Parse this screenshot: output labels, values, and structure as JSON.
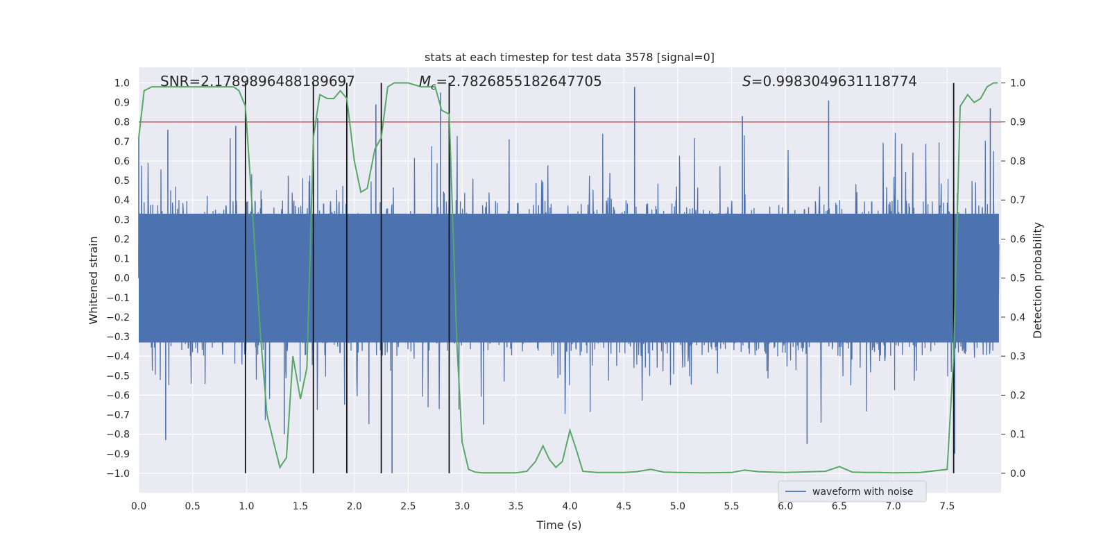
{
  "chart_data": {
    "type": "line",
    "title": "stats at each timestep for test data 3578 [signal=0]",
    "xlabel": "Time (s)",
    "ylabel": "Whitened strain",
    "y2label": "Detection probability",
    "xlim": [
      0.0,
      8.0
    ],
    "ylim": [
      -1.1,
      1.08
    ],
    "y2lim": [
      -0.05,
      1.04
    ],
    "x_ticks": [
      "0.0",
      "0.5",
      "1.0",
      "1.5",
      "2.0",
      "2.5",
      "3.0",
      "3.5",
      "4.0",
      "4.5",
      "5.0",
      "5.5",
      "6.0",
      "6.5",
      "7.0",
      "7.5"
    ],
    "y_ticks": [
      "1.0",
      "0.9",
      "0.8",
      "0.7",
      "0.6",
      "0.5",
      "0.4",
      "0.3",
      "0.2",
      "0.1",
      "0.0",
      "−0.1",
      "−0.2",
      "−0.3",
      "−0.4",
      "−0.5",
      "−0.6",
      "−0.7",
      "−0.8",
      "−0.9",
      "−1.0"
    ],
    "y2_ticks": [
      "1.0",
      "0.9",
      "0.8",
      "0.7",
      "0.6",
      "0.5",
      "0.4",
      "0.3",
      "0.2",
      "0.1",
      "0.0"
    ],
    "grid": true,
    "legend_position": "lower-right",
    "annotations": {
      "snr": "SNR=2.1789896488189697",
      "mc_symbol": "M",
      "mc_sub": "c",
      "mc_value": "=2.7826855182647705",
      "s_symbol": "S",
      "s_value": "=0.9983049631118774"
    },
    "threshold": {
      "y2": 0.9,
      "color": "#c44e52"
    },
    "vertical_lines_x": [
      0.99,
      1.62,
      1.93,
      2.25,
      2.88,
      7.56
    ],
    "series": [
      {
        "name": "waveform with noise",
        "color": "#4c72b0",
        "axis": "left",
        "representation": "dense noisy waveform sampled over 0 to 8 s; typical amplitude about ±0.4, spikes up to about 0.98 and down to about −1.0",
        "envelope_points": [
          {
            "x": 0.0,
            "y": 0.72
          },
          {
            "x": 0.27,
            "y": 0.76
          },
          {
            "x": 0.9,
            "y": 0.78
          },
          {
            "x": 1.66,
            "y": 0.82
          },
          {
            "x": 2.2,
            "y": 0.89
          },
          {
            "x": 2.8,
            "y": 0.95
          },
          {
            "x": 4.6,
            "y": 0.98
          },
          {
            "x": 5.6,
            "y": 0.83
          },
          {
            "x": 6.4,
            "y": 0.91
          },
          {
            "x": 7.9,
            "y": 0.87
          },
          {
            "x": 0.25,
            "y": -0.83
          },
          {
            "x": 1.35,
            "y": -0.8
          },
          {
            "x": 2.35,
            "y": -1.0
          },
          {
            "x": 6.2,
            "y": -0.85
          },
          {
            "x": 7.57,
            "y": -0.9
          },
          {
            "x": 3.2,
            "y": -0.75
          }
        ]
      },
      {
        "name": "",
        "color": "#55a868",
        "axis": "right",
        "x": [
          0.0,
          0.05,
          0.12,
          0.25,
          0.5,
          0.75,
          0.88,
          0.93,
          0.99,
          1.06,
          1.13,
          1.19,
          1.26,
          1.31,
          1.37,
          1.43,
          1.5,
          1.56,
          1.62,
          1.68,
          1.75,
          1.81,
          1.87,
          1.93,
          2.0,
          2.06,
          2.12,
          2.19,
          2.25,
          2.31,
          2.37,
          2.5,
          2.62,
          2.75,
          2.81,
          2.88,
          2.95,
          3.0,
          3.06,
          3.12,
          3.19,
          3.25,
          3.5,
          3.6,
          3.68,
          3.75,
          3.81,
          3.87,
          3.93,
          4.0,
          4.06,
          4.12,
          4.25,
          4.5,
          4.62,
          4.75,
          4.87,
          5.0,
          5.25,
          5.5,
          5.62,
          5.75,
          5.87,
          6.0,
          6.12,
          6.25,
          6.37,
          6.5,
          6.62,
          6.75,
          6.87,
          7.0,
          7.25,
          7.5,
          7.56,
          7.62,
          7.69,
          7.75,
          7.81,
          7.87,
          7.93,
          7.97
        ],
        "y": [
          0.86,
          0.98,
          0.99,
          0.99,
          0.99,
          0.99,
          0.99,
          0.98,
          0.94,
          0.65,
          0.35,
          0.15,
          0.07,
          0.015,
          0.04,
          0.3,
          0.19,
          0.27,
          0.86,
          0.97,
          0.96,
          0.96,
          0.98,
          0.96,
          0.8,
          0.72,
          0.73,
          0.83,
          0.86,
          0.99,
          1.0,
          1.0,
          0.99,
          0.99,
          0.93,
          0.92,
          0.34,
          0.08,
          0.01,
          0.003,
          0.001,
          0.001,
          0.001,
          0.005,
          0.03,
          0.07,
          0.035,
          0.015,
          0.03,
          0.11,
          0.06,
          0.005,
          0.002,
          0.002,
          0.004,
          0.01,
          0.003,
          0.002,
          0.001,
          0.002,
          0.008,
          0.004,
          0.003,
          0.002,
          0.003,
          0.004,
          0.005,
          0.017,
          0.003,
          0.002,
          0.002,
          0.001,
          0.002,
          0.01,
          0.3,
          0.94,
          0.97,
          0.95,
          0.96,
          0.99,
          1.0,
          1.0
        ]
      }
    ]
  }
}
